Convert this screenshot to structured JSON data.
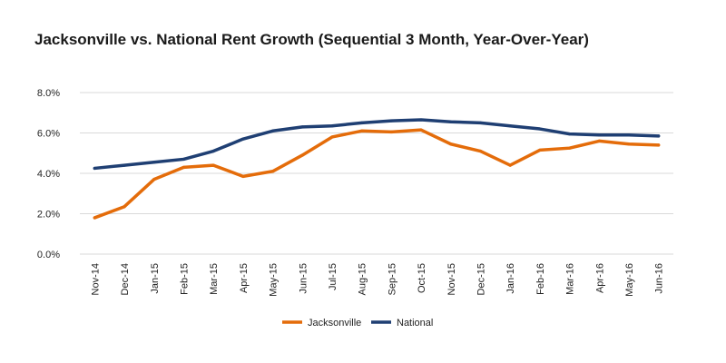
{
  "chart_data": {
    "type": "line",
    "title": "Jacksonville vs. National Rent Growth (Sequential 3 Month, Year-Over-Year)",
    "xlabel": "",
    "ylabel": "",
    "categories": [
      "Nov-14",
      "Dec-14",
      "Jan-15",
      "Feb-15",
      "Mar-15",
      "Apr-15",
      "May-15",
      "Jun-15",
      "Jul-15",
      "Aug-15",
      "Sep-15",
      "Oct-15",
      "Nov-15",
      "Dec-15",
      "Jan-16",
      "Feb-16",
      "Mar-16",
      "Apr-16",
      "May-16",
      "Jun-16"
    ],
    "y_ticks": [
      "0.0%",
      "2.0%",
      "4.0%",
      "6.0%",
      "8.0%"
    ],
    "ylim": [
      0,
      8
    ],
    "grid": true,
    "legend_position": "bottom",
    "series": [
      {
        "name": "Jacksonville",
        "color": "#E46C0A",
        "values": [
          1.8,
          2.35,
          3.7,
          4.3,
          4.4,
          3.85,
          4.1,
          4.9,
          5.8,
          6.1,
          6.05,
          6.15,
          5.45,
          5.1,
          4.4,
          5.15,
          5.25,
          5.6,
          5.45,
          5.4
        ]
      },
      {
        "name": "National",
        "color": "#1F3F73",
        "values": [
          4.25,
          4.4,
          4.55,
          4.7,
          5.1,
          5.7,
          6.1,
          6.3,
          6.35,
          6.5,
          6.6,
          6.65,
          6.55,
          6.5,
          6.35,
          6.2,
          5.95,
          5.9,
          5.9,
          5.85
        ]
      }
    ]
  }
}
